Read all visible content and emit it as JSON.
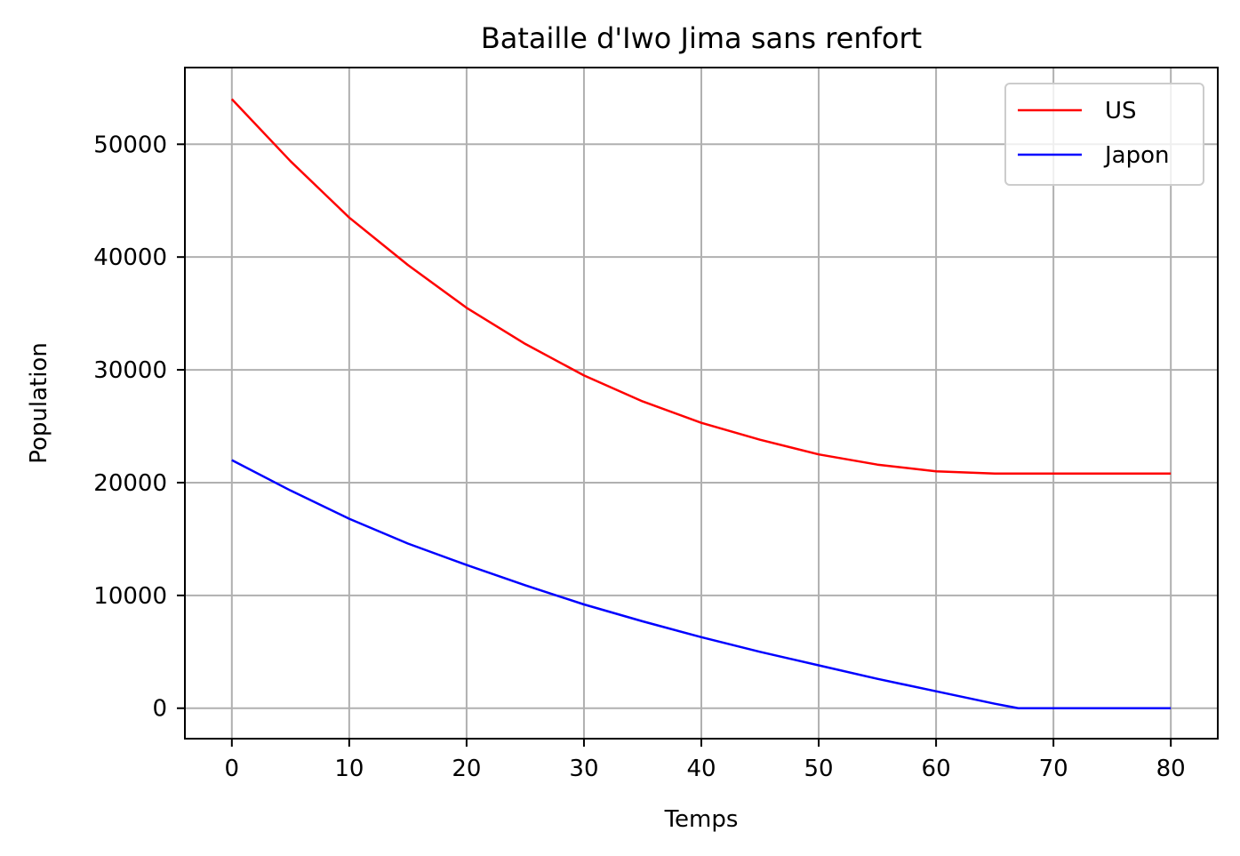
{
  "chart_data": {
    "type": "line",
    "title": "Bataille d'Iwo Jima sans renfort",
    "xlabel": "Temps",
    "ylabel": "Population",
    "xlim": [
      -4,
      84
    ],
    "ylim": [
      -2700,
      56800
    ],
    "xticks": [
      0,
      10,
      20,
      30,
      40,
      50,
      60,
      70,
      80
    ],
    "yticks": [
      0,
      10000,
      20000,
      30000,
      40000,
      50000
    ],
    "grid": true,
    "legend_position": "top-right",
    "x": [
      0,
      5,
      10,
      15,
      20,
      25,
      30,
      35,
      40,
      45,
      50,
      55,
      60,
      65,
      67,
      70,
      75,
      80
    ],
    "series": [
      {
        "name": "US",
        "color": "#ff0000",
        "values": [
          54000,
          48500,
          43500,
          39300,
          35500,
          32300,
          29500,
          27200,
          25300,
          23800,
          22500,
          21600,
          21000,
          20800,
          20800,
          20800,
          20800,
          20800
        ]
      },
      {
        "name": "Japon",
        "color": "#0000ff",
        "values": [
          22000,
          19300,
          16800,
          14600,
          12700,
          10900,
          9200,
          7700,
          6300,
          5000,
          3800,
          2600,
          1500,
          400,
          0,
          0,
          0,
          0
        ]
      }
    ]
  }
}
